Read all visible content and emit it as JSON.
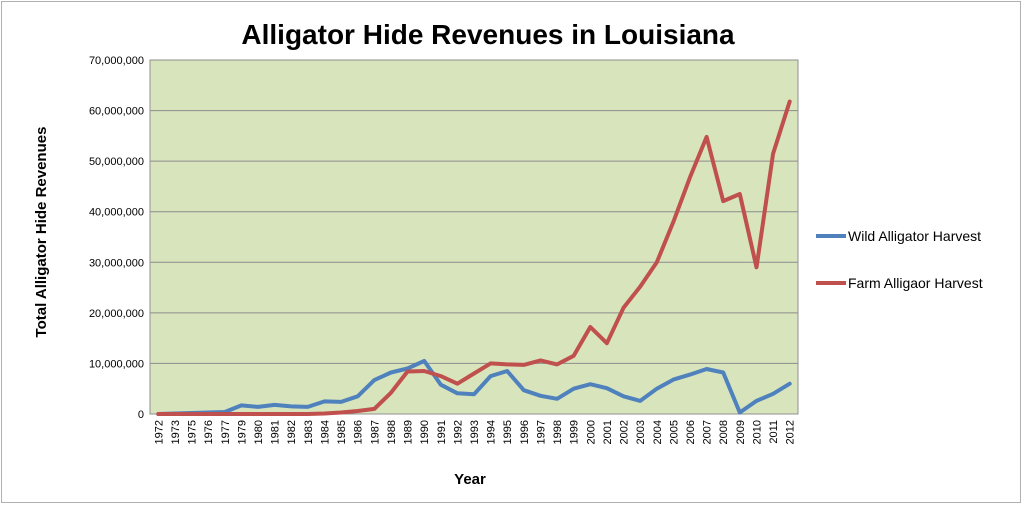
{
  "chart_data": {
    "type": "line",
    "title": "Alligator Hide Revenues in Louisiana",
    "xlabel": "Year",
    "ylabel": "Total Alligator Hide Revenues",
    "ylim": [
      0,
      70000000
    ],
    "yticks": [
      0,
      10000000,
      20000000,
      30000000,
      40000000,
      50000000,
      60000000,
      70000000
    ],
    "ytick_labels": [
      "0",
      "10,000,000",
      "20,000,000",
      "30,000,000",
      "40,000,000",
      "50,000,000",
      "60,000,000",
      "70,000,000"
    ],
    "grid": true,
    "plot_background": "#d8e4bc",
    "legend_position": "right",
    "categories": [
      "1972",
      "1973",
      "1975",
      "1976",
      "1977",
      "1979",
      "1980",
      "1981",
      "1982",
      "1983",
      "1984",
      "1985",
      "1986",
      "1987",
      "1988",
      "1989",
      "1990",
      "1991",
      "1992",
      "1993",
      "1994",
      "1995",
      "1996",
      "1997",
      "1998",
      "1999",
      "2000",
      "2001",
      "2002",
      "2003",
      "2004",
      "2005",
      "2006",
      "2007",
      "2008",
      "2009",
      "2010",
      "2011",
      "2012"
    ],
    "series": [
      {
        "name": "Wild Alligator Harvest",
        "color": "#4f81bd",
        "values": [
          0,
          100000,
          200000,
          300000,
          400000,
          1700000,
          1400000,
          1800000,
          1500000,
          1400000,
          2500000,
          2400000,
          3500000,
          6700000,
          8200000,
          9000000,
          10500000,
          5800000,
          4100000,
          3900000,
          7500000,
          8500000,
          4700000,
          3600000,
          3000000,
          5000000,
          5900000,
          5100000,
          3500000,
          2600000,
          5000000,
          6800000,
          7800000,
          8900000,
          8200000,
          300000,
          2600000,
          4000000,
          6000000
        ]
      },
      {
        "name": "Farm Alligaor Harvest",
        "color": "#c0504d",
        "values": [
          0,
          0,
          0,
          0,
          0,
          0,
          0,
          0,
          0,
          0,
          100000,
          300000,
          600000,
          1000000,
          4200000,
          8400000,
          8500000,
          7500000,
          6000000,
          8000000,
          10000000,
          9800000,
          9700000,
          10600000,
          9800000,
          11500000,
          17200000,
          14000000,
          21000000,
          25200000,
          30000000,
          38000000,
          46800000,
          54800000,
          42100000,
          43500000,
          29000000,
          51500000,
          61800000
        ]
      }
    ]
  }
}
